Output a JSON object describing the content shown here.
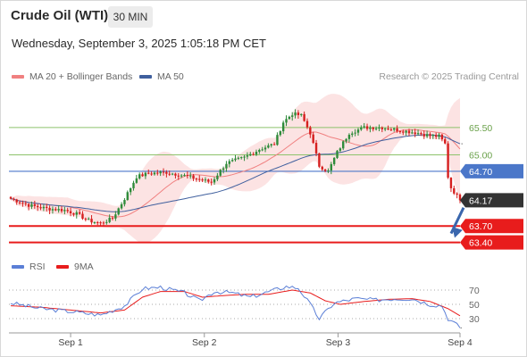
{
  "header": {
    "instrument": "Crude Oil (WTI)",
    "timeframe": "30 MIN",
    "datetime": "Wednesday, September 3, 2025 1:05:18 PM CET"
  },
  "legend": {
    "ma20_label": "MA 20 + Bollinger Bands",
    "ma50_label": "MA 50",
    "research": "Research © 2025 Trading Central"
  },
  "rsi_legend": {
    "rsi_label": "RSI",
    "ma_label": "9MA"
  },
  "colors": {
    "ma20": "#f08080",
    "bollinger_fill": "#fcdede",
    "ma50": "#3f5f9e",
    "candle_up": "#2e8b3a",
    "candle_down": "#d61f1f",
    "resistance": "#8dc26b",
    "pivot": "#4b77c9",
    "support": "#e81c1c",
    "last_price": "#333333",
    "rsi": "#5b7fd6",
    "rsi_ma": "#e81c1c",
    "arrow": "#3a66ad"
  },
  "chart_data": [
    {
      "type": "candlestick",
      "title": "Crude Oil (WTI)",
      "timeframe": "30 MIN",
      "x_tick_labels": [
        "Sep 1",
        "Sep 2",
        "Sep 3",
        "Sep 4"
      ],
      "ylim": [
        63.1,
        66.2
      ],
      "close_path": [
        [
          0,
          64.2
        ],
        [
          6,
          64.08
        ],
        [
          12,
          64.02
        ],
        [
          18,
          63.99
        ],
        [
          22,
          63.92
        ],
        [
          26,
          63.8
        ],
        [
          30,
          63.75
        ],
        [
          34,
          63.84
        ],
        [
          38,
          64.2
        ],
        [
          42,
          64.6
        ],
        [
          46,
          64.66
        ],
        [
          52,
          64.68
        ],
        [
          58,
          64.62
        ],
        [
          63,
          64.55
        ],
        [
          67,
          64.5
        ],
        [
          72,
          64.85
        ],
        [
          78,
          64.95
        ],
        [
          83,
          65.1
        ],
        [
          88,
          65.2
        ],
        [
          91,
          65.6
        ],
        [
          94,
          65.75
        ],
        [
          97,
          65.72
        ],
        [
          100,
          65.4
        ],
        [
          103,
          64.8
        ],
        [
          106,
          64.7
        ],
        [
          109,
          65.05
        ],
        [
          113,
          65.4
        ],
        [
          118,
          65.5
        ],
        [
          124,
          65.5
        ],
        [
          130,
          65.45
        ],
        [
          136,
          65.4
        ],
        [
          140,
          65.35
        ],
        [
          143,
          65.34
        ],
        [
          145,
          65.2
        ],
        [
          146,
          64.6
        ],
        [
          147,
          64.4
        ],
        [
          150,
          64.17
        ]
      ],
      "candles_per_day": 48,
      "last_price": 64.17,
      "levels": [
        {
          "label": "65.50",
          "value": 65.5,
          "kind": "resistance"
        },
        {
          "label": "65.00",
          "value": 65.0,
          "kind": "resistance"
        },
        {
          "label": "64.70",
          "value": 64.7,
          "kind": "pivot"
        },
        {
          "label": "63.70",
          "value": 63.7,
          "kind": "support"
        },
        {
          "label": "63.40",
          "value": 63.4,
          "kind": "support"
        }
      ],
      "last_label": "64.17",
      "forecast_arrow": {
        "from_value": 64.1,
        "to_value": 63.45
      },
      "series": [
        {
          "name": "MA 20 + Bollinger Bands"
        },
        {
          "name": "MA 50"
        }
      ]
    },
    {
      "type": "line",
      "ylim": [
        10,
        90
      ],
      "y_ticks": [
        "70",
        "50",
        "30"
      ],
      "y_tick_values": [
        70,
        50,
        30
      ],
      "rsi_path": [
        [
          0,
          52
        ],
        [
          10,
          44
        ],
        [
          20,
          40
        ],
        [
          30,
          35
        ],
        [
          38,
          48
        ],
        [
          44,
          72
        ],
        [
          50,
          74
        ],
        [
          58,
          66
        ],
        [
          63,
          55
        ],
        [
          68,
          68
        ],
        [
          74,
          66
        ],
        [
          80,
          60
        ],
        [
          88,
          70
        ],
        [
          92,
          75
        ],
        [
          96,
          73
        ],
        [
          100,
          50
        ],
        [
          103,
          30
        ],
        [
          108,
          52
        ],
        [
          115,
          58
        ],
        [
          122,
          56
        ],
        [
          128,
          58
        ],
        [
          134,
          58
        ],
        [
          140,
          50
        ],
        [
          144,
          48
        ],
        [
          146,
          30
        ],
        [
          150,
          18
        ]
      ],
      "rsi_ma_path": [
        [
          0,
          48
        ],
        [
          10,
          46
        ],
        [
          20,
          42
        ],
        [
          30,
          38
        ],
        [
          38,
          42
        ],
        [
          44,
          60
        ],
        [
          50,
          68
        ],
        [
          58,
          68
        ],
        [
          64,
          60
        ],
        [
          70,
          62
        ],
        [
          78,
          64
        ],
        [
          86,
          64
        ],
        [
          94,
          70
        ],
        [
          100,
          66
        ],
        [
          105,
          55
        ],
        [
          110,
          50
        ],
        [
          118,
          54
        ],
        [
          126,
          57
        ],
        [
          134,
          58
        ],
        [
          140,
          54
        ],
        [
          146,
          44
        ],
        [
          150,
          34
        ]
      ],
      "series": [
        {
          "name": "RSI"
        },
        {
          "name": "9MA"
        }
      ]
    }
  ]
}
